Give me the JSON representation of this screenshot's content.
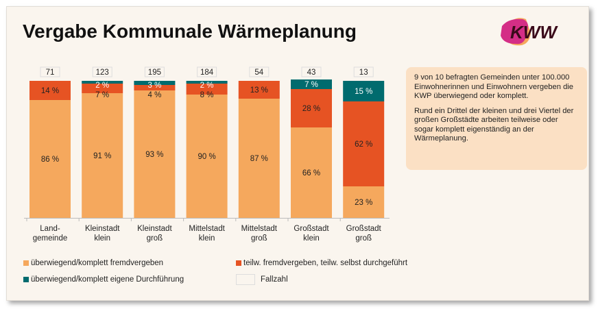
{
  "title": "Vergabe Kommunale Wärmeplanung",
  "logo_text": "KWW",
  "note": [
    "9 von 10 befragten Gemeinden unter 100.000 Einwohnerinnen und Einwohnern vergeben die KWP überwiegend oder komplett.",
    "Rund ein Drittel der kleinen und drei Viertel der großen Großstädte arbeiten teilweise oder sogar komplett eigenständig an der Wärmeplanung."
  ],
  "legend": {
    "fremd": "überwiegend/komplett fremdvergeben",
    "teilw": "teilw. fremdvergeben, teilw. selbst durchgeführt",
    "eigen": "überwiegend/komplett eigene Durchführung",
    "fallzahl": "Fallzahl"
  },
  "colors": {
    "fremd": "#f5a85d",
    "teilw": "#e65323",
    "eigen": "#006b6e"
  },
  "chart_data": {
    "type": "bar",
    "stacked": true,
    "ylim": [
      0,
      100
    ],
    "categories": [
      [
        "Land-",
        "gemeinde"
      ],
      [
        "Kleinstadt",
        "klein"
      ],
      [
        "Kleinstadt",
        "groß"
      ],
      [
        "Mittelstadt",
        "klein"
      ],
      [
        "Mittelstadt",
        "groß"
      ],
      [
        "Großstadt",
        "klein"
      ],
      [
        "Großstadt",
        "groß"
      ]
    ],
    "fallzahl": [
      71,
      123,
      195,
      184,
      54,
      43,
      13
    ],
    "series": [
      {
        "name": "überwiegend/komplett fremdvergeben",
        "key": "fremd",
        "values": [
          86,
          91,
          93,
          90,
          87,
          66,
          23
        ]
      },
      {
        "name": "teilw. fremdvergeben, teilw. selbst durchgeführt",
        "key": "teilw",
        "values": [
          14,
          7,
          4,
          8,
          13,
          28,
          62
        ]
      },
      {
        "name": "überwiegend/komplett eigene Durchführung",
        "key": "eigen",
        "values": [
          0,
          2,
          3,
          2,
          0,
          7,
          15
        ]
      }
    ]
  }
}
